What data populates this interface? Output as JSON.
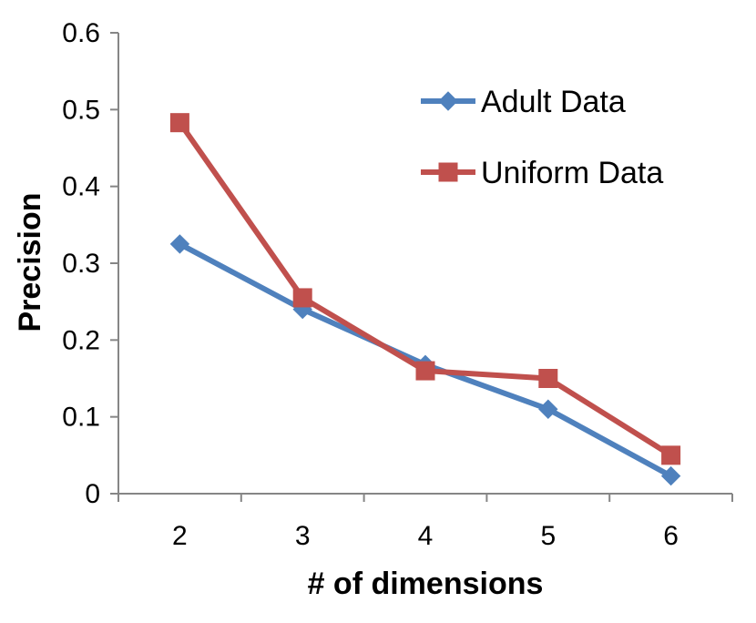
{
  "chart_data": {
    "type": "line",
    "title": "",
    "xlabel": "# of dimensions",
    "ylabel": "Precision",
    "categories": [
      "2",
      "3",
      "4",
      "5",
      "6"
    ],
    "ylim": [
      0,
      0.6
    ],
    "yticks": [
      "0",
      "0.1",
      "0.2",
      "0.3",
      "0.4",
      "0.5",
      "0.6"
    ],
    "grid": false,
    "legend_position": "top-right",
    "series": [
      {
        "name": "Adult Data",
        "values": [
          0.325,
          0.24,
          0.168,
          0.11,
          0.023
        ],
        "color": "#4f81bd",
        "marker": "diamond"
      },
      {
        "name": "Uniform Data",
        "values": [
          0.483,
          0.255,
          0.16,
          0.15,
          0.05
        ],
        "color": "#c0504d",
        "marker": "square"
      }
    ]
  }
}
